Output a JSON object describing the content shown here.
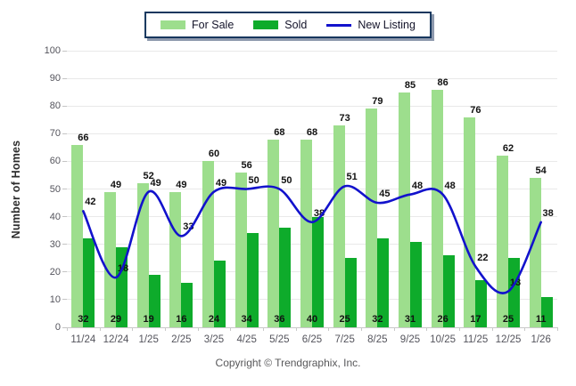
{
  "chart_data": {
    "type": "bar",
    "subtype": "grouped-bars-with-line-overlay",
    "categories": [
      "11/24",
      "12/24",
      "1/25",
      "2/25",
      "3/25",
      "4/25",
      "5/25",
      "6/25",
      "7/25",
      "8/25",
      "9/25",
      "10/25",
      "11/25",
      "12/25",
      "1/26"
    ],
    "series": [
      {
        "name": "For Sale",
        "type": "bar",
        "color": "#9DDE8D",
        "values": [
          66,
          49,
          52,
          49,
          60,
          56,
          68,
          68,
          73,
          79,
          85,
          86,
          76,
          62,
          54
        ]
      },
      {
        "name": "Sold",
        "type": "bar",
        "color": "#0EAB2B",
        "values": [
          32,
          29,
          19,
          16,
          24,
          34,
          36,
          40,
          25,
          32,
          31,
          26,
          17,
          25,
          11
        ]
      },
      {
        "name": "New Listing",
        "type": "line",
        "color": "#1212CC",
        "values": [
          42,
          18,
          49,
          33,
          49,
          50,
          50,
          38,
          51,
          45,
          48,
          48,
          22,
          13,
          38
        ]
      }
    ],
    "title": "",
    "xlabel": "",
    "ylabel": "Number of Homes",
    "ylim": [
      0,
      100
    ],
    "yticks": [
      0,
      10,
      20,
      30,
      40,
      50,
      60,
      70,
      80,
      90,
      100
    ],
    "grid": true,
    "data_labels": true,
    "legend_position": "top-center"
  },
  "legend": {
    "items": [
      {
        "label": "For Sale"
      },
      {
        "label": "Sold"
      },
      {
        "label": "New Listing"
      }
    ]
  },
  "footer": {
    "copyright": "Copyright © Trendgraphix, Inc."
  },
  "colors": {
    "for_sale": "#9DDE8D",
    "sold": "#0EAB2B",
    "new_listing": "#1212CC",
    "gridline": "#E9E9E9",
    "axis": "#C9C9C9",
    "tick_text": "#54545C",
    "value_label_text": "#111111",
    "legend_border": "#17375E",
    "legend_shadow": "#8E99AD",
    "background": "#FFFFFF"
  }
}
